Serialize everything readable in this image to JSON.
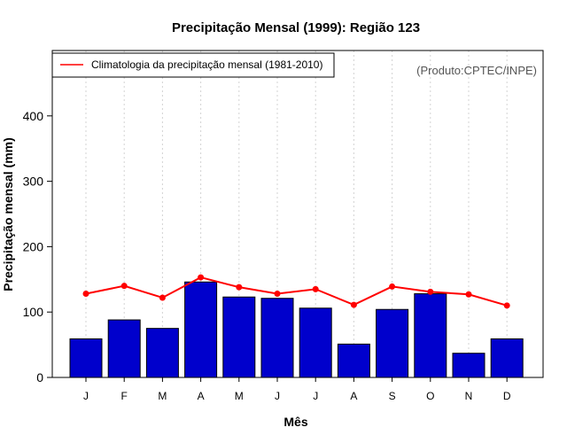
{
  "chart_data": {
    "type": "bar",
    "title": "Precipitação Mensal (1999): Região 123",
    "xlabel": "Mês",
    "ylabel": "Precipitação mensal (mm)",
    "ylim": [
      0,
      500
    ],
    "yticks": [
      0,
      100,
      200,
      300,
      400
    ],
    "categories": [
      "J",
      "F",
      "M",
      "A",
      "M",
      "J",
      "J",
      "A",
      "S",
      "O",
      "N",
      "D"
    ],
    "series": [
      {
        "name": "Precipitação mensal (1999)",
        "type": "bar",
        "color": "#0000cc",
        "values": [
          59,
          88,
          75,
          146,
          123,
          121,
          106,
          51,
          104,
          128,
          37,
          59
        ]
      },
      {
        "name": "Climatologia da precipitação mensal (1981-2010)",
        "type": "line",
        "color": "#ff0000",
        "values": [
          128,
          140,
          122,
          153,
          138,
          128,
          135,
          111,
          139,
          131,
          127,
          110
        ]
      }
    ],
    "legend": {
      "entries": [
        "Climatologia da precipitação mensal (1981-2010)"
      ],
      "placement": "top-left"
    },
    "grid": {
      "vertical": true,
      "horizontal": false
    },
    "credit": "(Produto:CPTEC/INPE)"
  }
}
